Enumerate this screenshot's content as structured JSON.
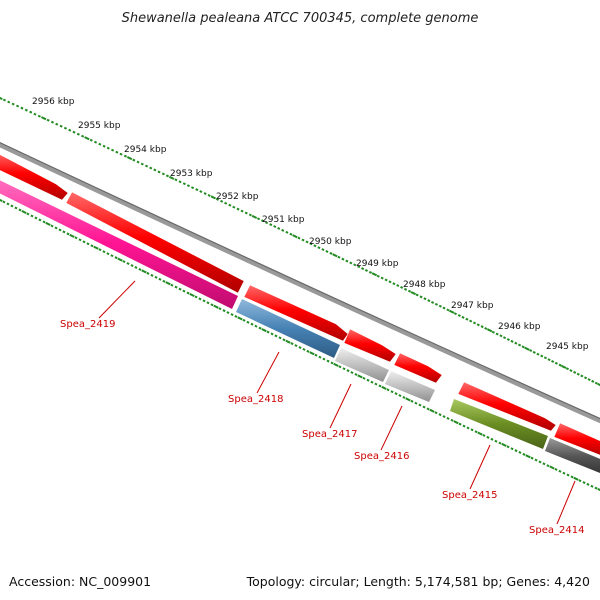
{
  "title": "Shewanella pealeana ATCC 700345, complete genome",
  "footer": {
    "accession": "Accession: NC_009901",
    "summary": "Topology: circular; Length: 5,174,581 bp; Genes: 4,420"
  },
  "scale_labels": [
    "2956 kbp",
    "2955 kbp",
    "2954 kbp",
    "2953 kbp",
    "2952 kbp",
    "2951 kbp",
    "2950 kbp",
    "2949 kbp",
    "2948 kbp",
    "2947 kbp",
    "2946 kbp",
    "2945 kbp"
  ],
  "genes": [
    {
      "label": "Spea_2419",
      "color": "#ff1493"
    },
    {
      "label": "Spea_2418",
      "color": "#4682b4"
    },
    {
      "label": "Spea_2417",
      "color": "#c0c0c0"
    },
    {
      "label": "Spea_2416",
      "color": "#c0c0c0"
    },
    {
      "label": "Spea_2415",
      "color": "#6b8e23"
    },
    {
      "label": "Spea_2414",
      "color": "#555555"
    }
  ],
  "colors": {
    "forward_strand": "#ff0000",
    "scale_ticks": "#228b22",
    "backbone": "#888888",
    "label_text": "#cc0000"
  }
}
